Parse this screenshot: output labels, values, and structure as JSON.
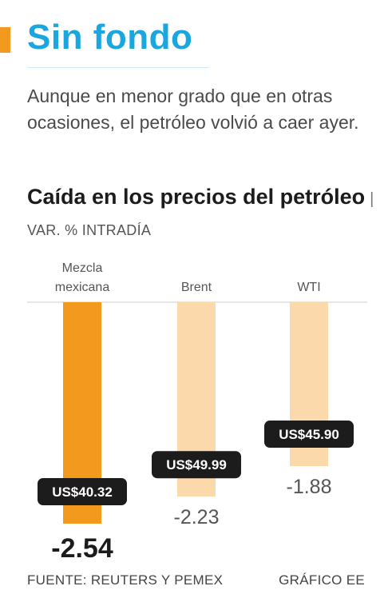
{
  "header": {
    "title": "Sin fondo",
    "intro": "Aunque en menor grado que en otras ocasiones, el petróleo volvió a caer ayer."
  },
  "chart_data": {
    "type": "bar",
    "title": "Caída en los precios del petróleo",
    "subtitle": "VAR. % INTRADÍA",
    "categories": [
      "Mezcla mexicana",
      "Brent",
      "WTI"
    ],
    "values": [
      -2.54,
      -2.23,
      -1.88
    ],
    "value_labels": [
      "-2.54",
      "-2.23",
      "-1.88"
    ],
    "price_labels": [
      "US$40.32",
      "US$49.99",
      "US$45.90"
    ],
    "ylim": [
      -2.54,
      0
    ],
    "highlight_index": 0,
    "colors": {
      "highlight": "#f39a1e",
      "bar": "#fcd9ab",
      "badge": "#1c1c1c",
      "badge_text": "#ffffff"
    }
  },
  "footer": {
    "source": "FUENTE: REUTERS Y PEMEX",
    "credit": "GRÁFICO EE"
  }
}
